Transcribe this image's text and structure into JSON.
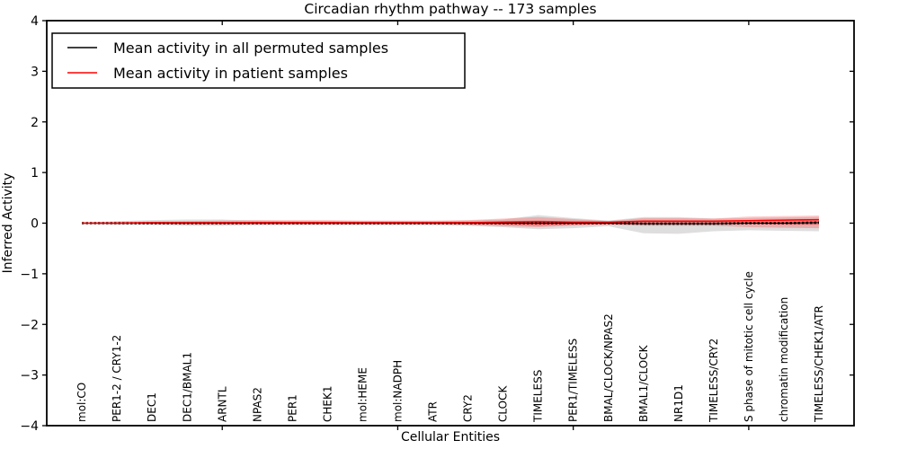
{
  "title": "Circadian rhythm pathway -- 173 samples",
  "legend": {
    "items": [
      {
        "label": "Mean activity in all permuted samples",
        "color": "#000000"
      },
      {
        "label": "Mean activity in patient samples",
        "color": "#ff0000"
      }
    ]
  },
  "colors": {
    "background": "#ffffff",
    "axis": "#000000",
    "permuted_line": "#000000",
    "patient_line": "#ff0000",
    "permuted_band": "#999999",
    "patient_band": "#ff2222"
  },
  "chart_data": {
    "type": "line",
    "title": "Circadian rhythm pathway -- 173 samples",
    "xlabel": "Cellular Entities",
    "ylabel": "Inferred Activity",
    "xlim": [
      -1,
      22
    ],
    "ylim": [
      -4,
      4
    ],
    "yticks": [
      -4,
      -3,
      -2,
      -1,
      0,
      1,
      2,
      3,
      4
    ],
    "xtick_positions": [
      4,
      9,
      14,
      19
    ],
    "grid": false,
    "legend_position": "upper left",
    "categories": [
      "mol:CO",
      "PER1-2 / CRY1-2",
      "DEC1",
      "DEC1/BMAL1",
      "ARNTL",
      "NPAS2",
      "PER1",
      "CHEK1",
      "mol:HEME",
      "mol:NADPH",
      "ATR",
      "CRY2",
      "CLOCK",
      "TIMELESS",
      "PER1/TIMELESS",
      "BMAL/CLOCK/NPAS2",
      "BMAL1/CLOCK",
      "NR1D1",
      "TIMELESS/CRY2",
      "S phase of mitotic cell cycle",
      "chromatin modification",
      "TIMELESS/CHEK1/ATR"
    ],
    "series": [
      {
        "name": "Mean activity in all permuted samples",
        "color": "#000000",
        "style": "dotted-markers",
        "values": [
          0,
          0,
          0,
          0,
          0,
          0,
          0,
          0,
          0,
          0,
          0,
          0,
          0,
          0,
          0,
          0,
          -0.01,
          -0.01,
          -0.01,
          0,
          0,
          0.01
        ]
      },
      {
        "name": "Mean activity in patient samples",
        "color": "#ff0000",
        "style": "solid",
        "values": [
          0,
          0,
          0.01,
          0.01,
          0.01,
          0.01,
          0.01,
          0.01,
          0.01,
          0.01,
          0.01,
          0.01,
          0.02,
          0.03,
          0.02,
          0.02,
          0.04,
          0.04,
          0.04,
          0.05,
          0.06,
          0.07
        ]
      }
    ],
    "bands": [
      {
        "name": "permuted-samples-range",
        "color": "#999999",
        "opacity": 0.32,
        "upper": [
          0.01,
          0.04,
          0.06,
          0.07,
          0.07,
          0.05,
          0.04,
          0.04,
          0.04,
          0.04,
          0.04,
          0.05,
          0.07,
          0.16,
          0.1,
          0.05,
          0.12,
          0.12,
          0.09,
          0.1,
          0.11,
          0.12
        ],
        "lower": [
          -0.01,
          -0.03,
          -0.04,
          -0.05,
          -0.05,
          -0.04,
          -0.04,
          -0.04,
          -0.04,
          -0.04,
          -0.04,
          -0.05,
          -0.08,
          -0.12,
          -0.1,
          -0.06,
          -0.2,
          -0.21,
          -0.16,
          -0.14,
          -0.15,
          -0.16
        ]
      },
      {
        "name": "patient-samples-range",
        "color": "#ff2222",
        "opacity": 0.25,
        "upper": [
          0.01,
          0.02,
          0.03,
          0.04,
          0.05,
          0.06,
          0.06,
          0.06,
          0.05,
          0.05,
          0.05,
          0.06,
          0.09,
          0.12,
          0.08,
          0.04,
          0.1,
          0.1,
          0.09,
          0.13,
          0.14,
          0.15
        ],
        "lower": [
          -0.01,
          -0.02,
          -0.02,
          -0.03,
          -0.03,
          -0.03,
          -0.03,
          -0.03,
          -0.03,
          -0.03,
          -0.03,
          -0.04,
          -0.06,
          -0.08,
          -0.05,
          -0.03,
          -0.05,
          -0.05,
          -0.05,
          -0.08,
          -0.09,
          -0.1
        ]
      },
      {
        "name": "patient-samples-inner-band",
        "color": "#ff2222",
        "opacity": 0.42,
        "upper": [
          0.005,
          0.01,
          0.015,
          0.02,
          0.02,
          0.025,
          0.025,
          0.025,
          0.02,
          0.02,
          0.02,
          0.025,
          0.04,
          0.05,
          0.035,
          0.02,
          0.05,
          0.05,
          0.05,
          0.06,
          0.07,
          0.08
        ],
        "lower": [
          -0.005,
          -0.01,
          -0.01,
          -0.015,
          -0.015,
          -0.015,
          -0.015,
          -0.015,
          -0.015,
          -0.015,
          -0.015,
          -0.02,
          -0.03,
          -0.05,
          -0.03,
          -0.02,
          -0.02,
          -0.02,
          -0.02,
          -0.02,
          -0.03,
          -0.03
        ]
      }
    ]
  }
}
